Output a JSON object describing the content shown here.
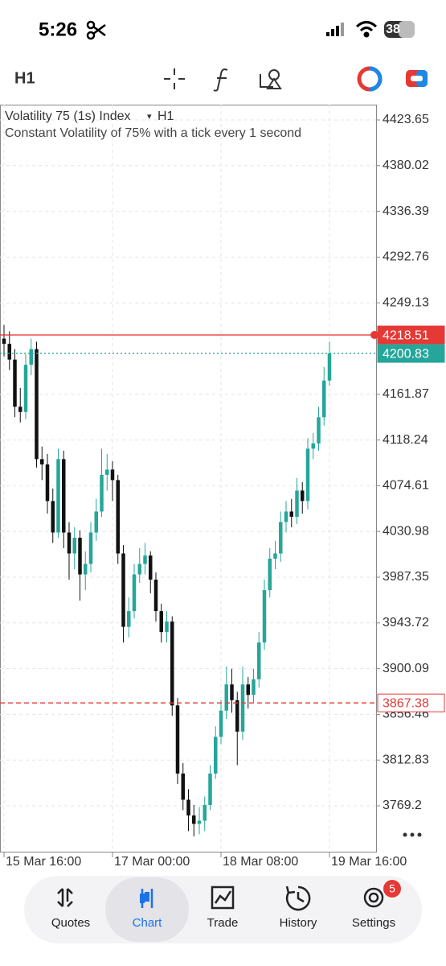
{
  "status_bar": {
    "time": "5:26",
    "battery": "38"
  },
  "toolbar": {
    "timeframe": "H1"
  },
  "chart_data": {
    "type": "candlestick",
    "title": "Volatility 75 (1s) Index",
    "timeframe": "H1",
    "subtitle": "Constant Volatility of 75% with a tick every 1 second",
    "categories": [
      "15 Mar 16:00",
      null,
      null,
      null,
      null,
      null,
      null,
      null,
      null,
      null,
      null,
      null,
      null,
      null,
      null,
      null,
      null,
      null,
      null,
      null,
      "17 Mar 00:00",
      null,
      null,
      null,
      null,
      null,
      null,
      null,
      null,
      null,
      null,
      null,
      null,
      null,
      null,
      null,
      null,
      null,
      null,
      null,
      "18 Mar 08:00",
      null,
      null,
      null,
      null,
      null,
      null,
      null,
      null,
      null,
      null,
      null,
      null,
      null,
      null,
      null,
      null,
      null,
      null,
      null,
      "19 Mar 16:00"
    ],
    "open": [
      4215,
      4210,
      4195,
      4150,
      4145,
      4190,
      4205,
      4100,
      4095,
      4060,
      4030,
      4100,
      4030,
      4010,
      4025,
      3990,
      4000,
      4030,
      4050,
      4085,
      4090,
      4080,
      4010,
      3940,
      3955,
      3990,
      4000,
      4008,
      3985,
      3955,
      3935,
      3945,
      3865,
      3800,
      3775,
      3760,
      3752,
      3755,
      3770,
      3800,
      3835,
      3860,
      3885,
      3870,
      3840,
      3885,
      3875,
      3890,
      3925,
      3975,
      4005,
      4010,
      4040,
      4050,
      4045,
      4070,
      4060,
      4110,
      4115,
      4140,
      4175
    ],
    "high": [
      4228,
      4222,
      4205,
      4168,
      4200,
      4215,
      4212,
      4112,
      4105,
      4072,
      4110,
      4108,
      4040,
      4035,
      4032,
      4012,
      4040,
      4062,
      4110,
      4105,
      4098,
      4085,
      4018,
      3968,
      4000,
      4015,
      4020,
      4012,
      3992,
      3962,
      3955,
      3950,
      3872,
      3810,
      3785,
      3770,
      3768,
      3778,
      3808,
      3845,
      3870,
      3902,
      3900,
      3878,
      3902,
      3892,
      3900,
      3935,
      3985,
      4015,
      4022,
      4050,
      4060,
      4062,
      4082,
      4078,
      4120,
      4125,
      4150,
      4188,
      4212
    ],
    "low": [
      4198,
      4185,
      4140,
      4135,
      4138,
      4180,
      4092,
      4080,
      4048,
      4020,
      4025,
      4015,
      3985,
      3995,
      3965,
      3975,
      3992,
      4022,
      4045,
      4070,
      4060,
      4000,
      3925,
      3930,
      3948,
      3982,
      3990,
      3972,
      3945,
      3925,
      3925,
      3855,
      3790,
      3765,
      3745,
      3740,
      3742,
      3745,
      3765,
      3795,
      3828,
      3852,
      3858,
      3808,
      3832,
      3862,
      3868,
      3882,
      3918,
      3968,
      3995,
      4002,
      4030,
      4035,
      4038,
      4048,
      4052,
      4100,
      4108,
      4132,
      4170
    ],
    "close": [
      4210,
      4195,
      4150,
      4145,
      4190,
      4205,
      4100,
      4095,
      4060,
      4030,
      4100,
      4030,
      4010,
      4025,
      3990,
      4000,
      4030,
      4050,
      4085,
      4090,
      4080,
      4010,
      3940,
      3955,
      3990,
      4000,
      4008,
      3985,
      3955,
      3935,
      3945,
      3865,
      3800,
      3775,
      3760,
      3752,
      3755,
      3770,
      3800,
      3835,
      3860,
      3885,
      3870,
      3840,
      3885,
      3875,
      3890,
      3925,
      3975,
      4005,
      4010,
      4040,
      4050,
      4045,
      4070,
      4060,
      4110,
      4115,
      4140,
      4175,
      4200.83
    ],
    "up_color": "#26a69a",
    "down_color": "#111111",
    "ylim": [
      3725.42,
      4438.24
    ],
    "yticks": [
      4423.65,
      4380.02,
      4336.39,
      4292.76,
      4249.13,
      4161.87,
      4118.24,
      4074.61,
      4030.98,
      3987.35,
      3943.72,
      3900.09,
      3856.46,
      3812.83,
      3769.2
    ],
    "grid": true,
    "price_lines": [
      {
        "value": 4218.51,
        "color": "#e53935",
        "style": "solid"
      },
      {
        "value": 4200.83,
        "color": "#26a69a",
        "style": "dotted"
      },
      {
        "value": 3867.38,
        "color": "#e53935",
        "style": "dashed"
      }
    ]
  },
  "nav": {
    "items": [
      "Quotes",
      "Chart",
      "Trade",
      "History",
      "Settings"
    ],
    "active": 1,
    "badge": "5"
  }
}
